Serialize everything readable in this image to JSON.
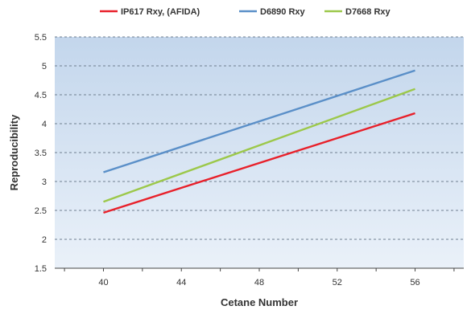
{
  "chart_data": {
    "type": "line",
    "title": "",
    "xlabel": "Cetane Number",
    "ylabel": "Reproducibility",
    "xlim": [
      37.5,
      58.5
    ],
    "ylim": [
      1.5,
      5.5
    ],
    "xticks": [
      40,
      44,
      48,
      52,
      56
    ],
    "yticks": [
      1.5,
      2,
      2.5,
      3,
      3.5,
      4,
      4.5,
      5,
      5.5
    ],
    "x_tick_labels": [
      "40",
      "44",
      "48",
      "52",
      "56"
    ],
    "y_tick_labels": [
      "1.5",
      "2",
      "2.5",
      "3",
      "3.5",
      "4",
      "4.5",
      "5",
      "5.5"
    ],
    "grid": "horizontal dashed",
    "legend_position": "top",
    "series": [
      {
        "name": "IP617 Rxy, (AFIDA)",
        "color": "#e8202a",
        "x": [
          40,
          56
        ],
        "y": [
          2.46,
          4.18
        ]
      },
      {
        "name": "D6890 Rxy",
        "color": "#5a8fc8",
        "x": [
          40,
          56
        ],
        "y": [
          3.16,
          4.92
        ]
      },
      {
        "name": "D7668 Rxy",
        "color": "#9cc84a",
        "x": [
          40,
          56
        ],
        "y": [
          2.65,
          4.6
        ]
      }
    ]
  }
}
